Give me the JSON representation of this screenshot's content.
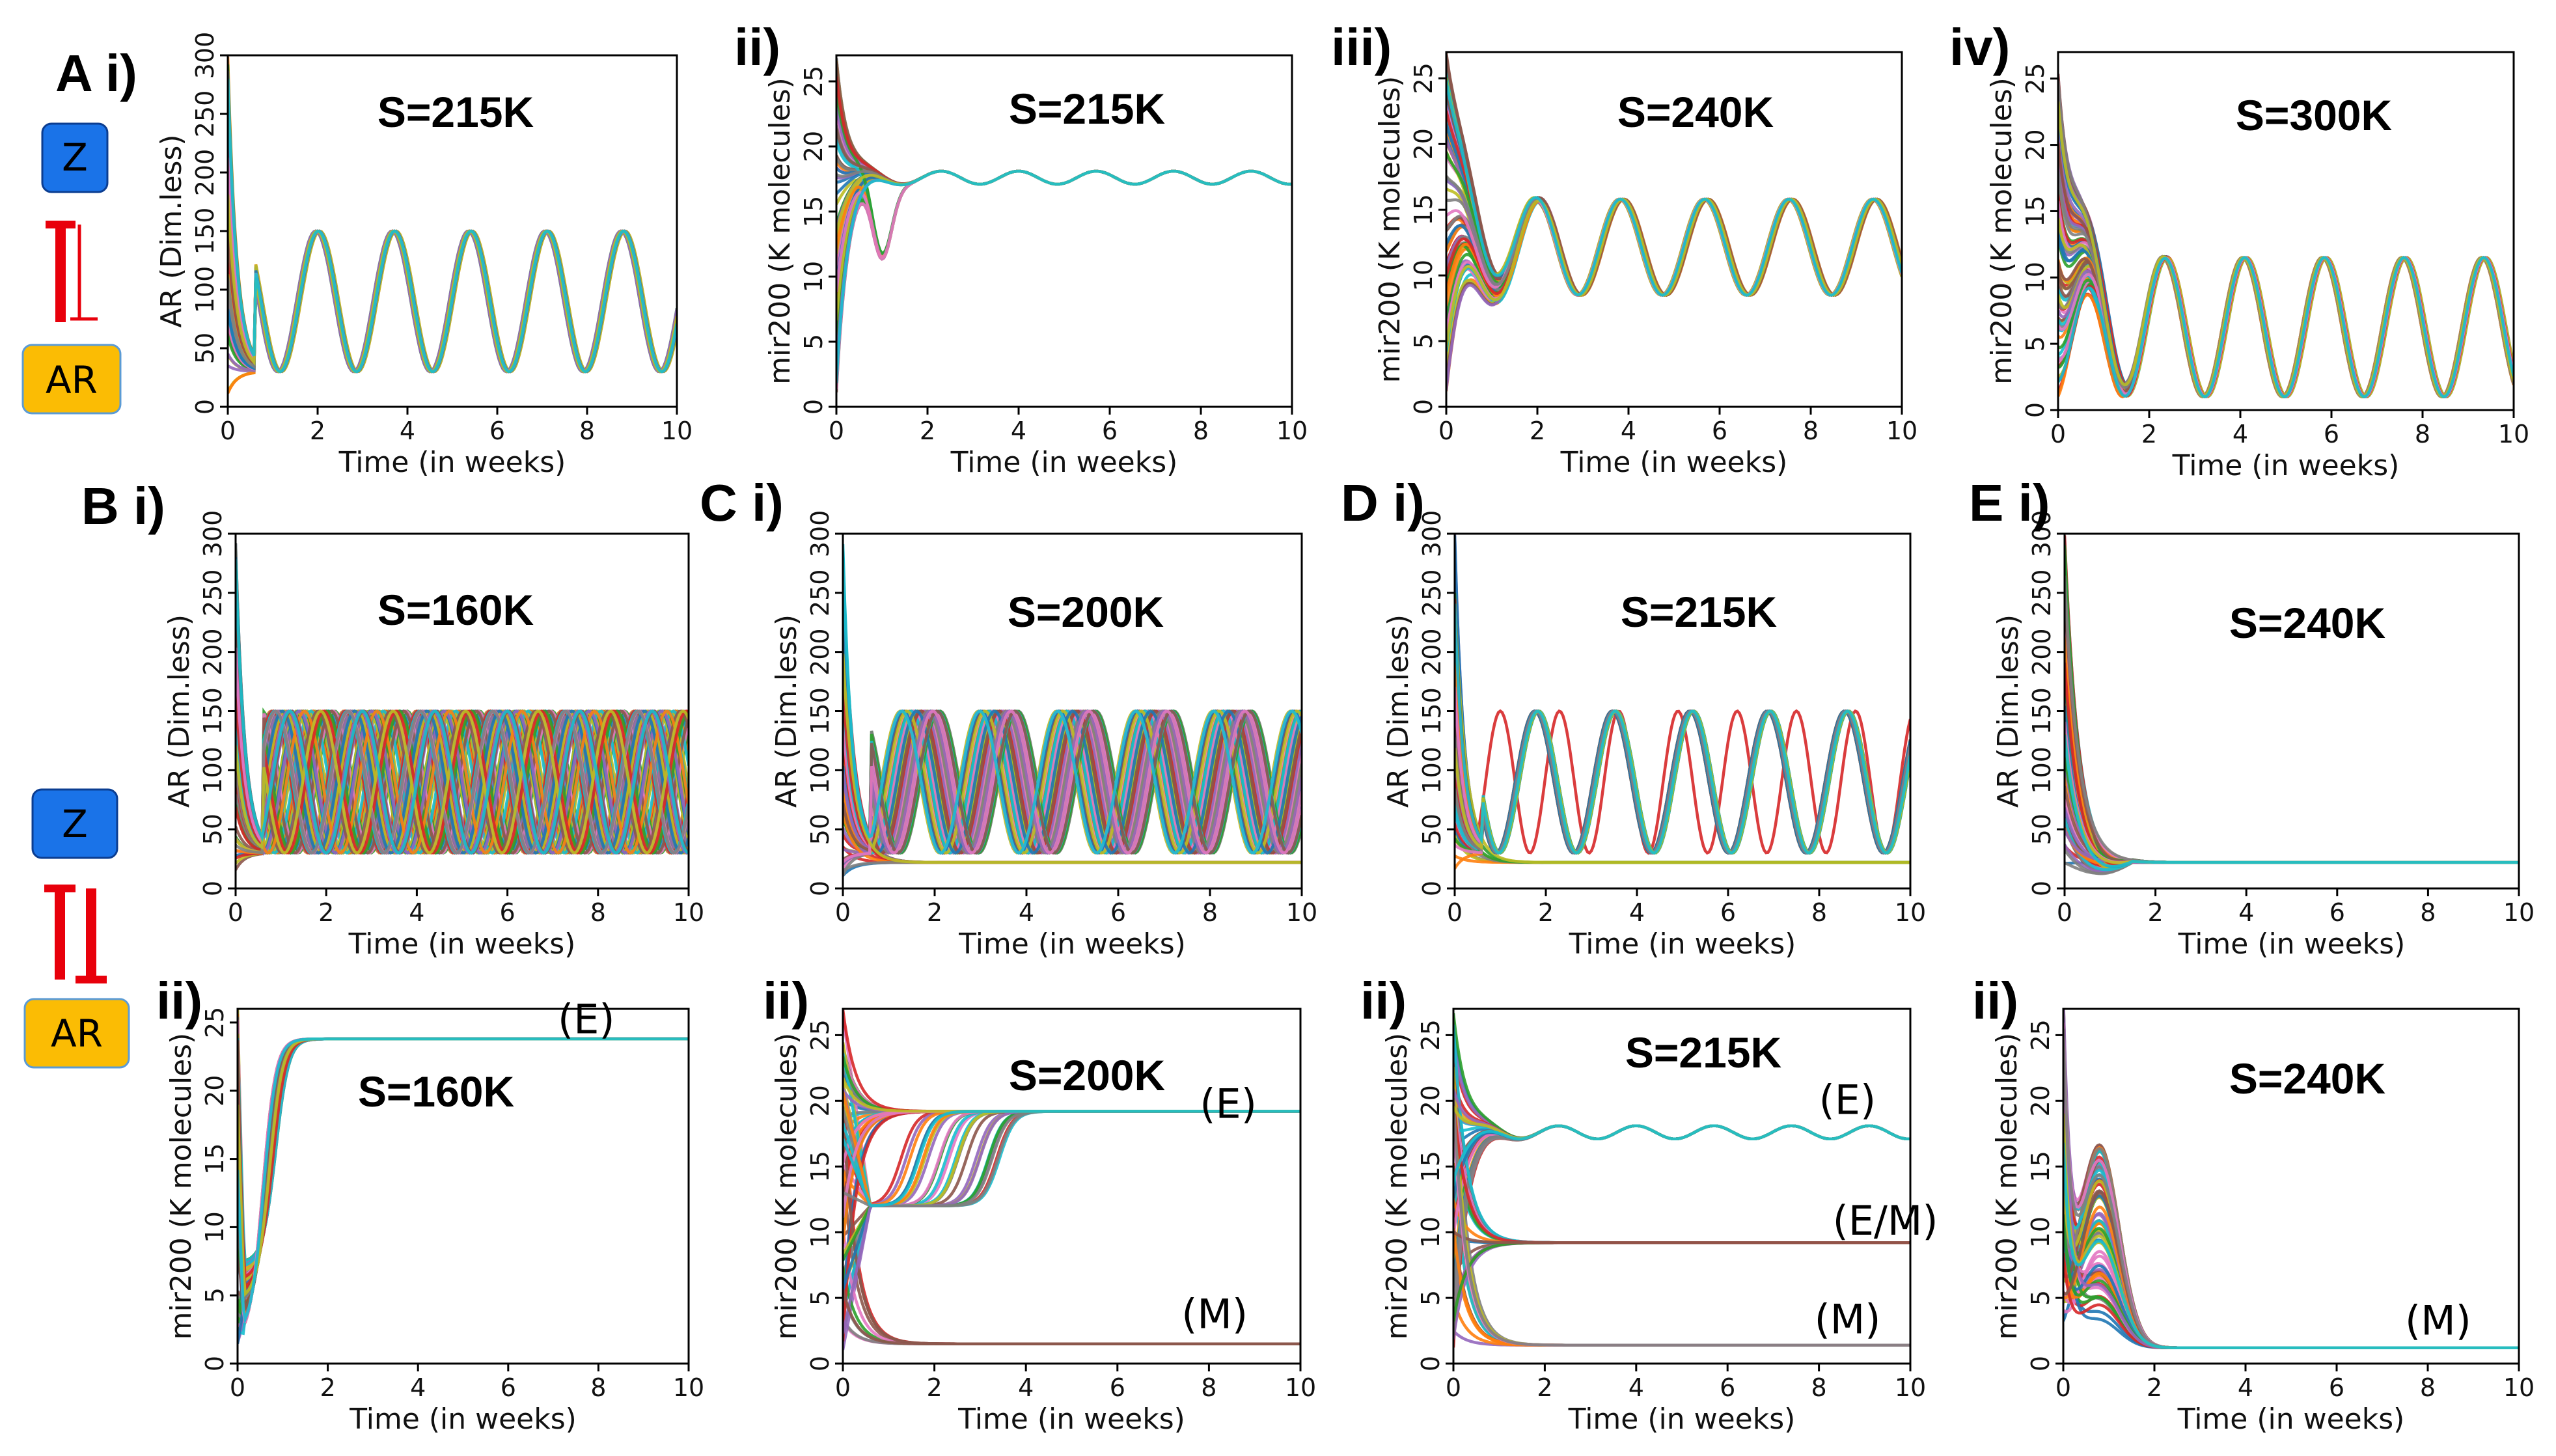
{
  "xlabel": "Time (in weeks)",
  "ylabels": {
    "ar": "AR (Dim.less)",
    "mir": "mir200 (K molecules)"
  },
  "legend_nodes": {
    "z": "Z",
    "ar": "AR"
  },
  "colors": {
    "palette": [
      "#1f77b4",
      "#ff7f0e",
      "#2ca02c",
      "#d62728",
      "#9467bd",
      "#8c564b",
      "#e377c2",
      "#7f7f7f",
      "#bcbd22",
      "#17becf"
    ],
    "z_badge": "#1a73e8",
    "ar_badge": "#fbbc04",
    "inhibit": "#e8000b"
  },
  "chart_data": [
    {
      "panel_label": "A i)",
      "title": "S=215K",
      "type": "line",
      "kind": "ar-osc",
      "xlim": [
        0,
        10
      ],
      "ylim": [
        0,
        300
      ],
      "xticks": [
        0,
        2,
        4,
        6,
        8,
        10
      ],
      "yticks": [
        0,
        50,
        100,
        150,
        200,
        250,
        300
      ],
      "series_summary": {
        "initial_max": 300,
        "osc_min": 30,
        "osc_max": 150,
        "period_weeks": 1.7,
        "first_peak": 2.0,
        "phase_spread": 0.1
      }
    },
    {
      "panel_label": "ii)",
      "title": "S=215K",
      "type": "line",
      "kind": "mir-damped",
      "xlim": [
        0,
        10
      ],
      "ylim": [
        0,
        27
      ],
      "xticks": [
        0,
        2,
        4,
        6,
        8,
        10
      ],
      "yticks": [
        0,
        5,
        10,
        15,
        20,
        25
      ],
      "series_summary": {
        "steady_center": 17.6,
        "amplitude": 0.5,
        "period_weeks": 1.7
      }
    },
    {
      "panel_label": "iii)",
      "title": "S=240K",
      "type": "line",
      "kind": "mir-osc",
      "xlim": [
        0,
        10
      ],
      "ylim": [
        0,
        27
      ],
      "xticks": [
        0,
        2,
        4,
        6,
        8,
        10
      ],
      "yticks": [
        0,
        5,
        10,
        15,
        20,
        25
      ],
      "series_summary": {
        "osc_min": 8.5,
        "osc_max": 15.8,
        "period_weeks": 1.85,
        "first_peak": 2.0
      }
    },
    {
      "panel_label": "iv)",
      "title": "S=300K",
      "type": "line",
      "kind": "mir-osc",
      "xlim": [
        0,
        10
      ],
      "ylim": [
        0,
        27
      ],
      "xticks": [
        0,
        2,
        4,
        6,
        8,
        10
      ],
      "yticks": [
        0,
        5,
        10,
        15,
        20,
        25
      ],
      "series_summary": {
        "osc_min": 1.0,
        "osc_max": 11.5,
        "period_weeks": 1.75,
        "first_peak": 0.6
      }
    },
    {
      "panel_label": "B i)",
      "title": "S=160K",
      "type": "line",
      "kind": "ar-osc",
      "xlim": [
        0,
        10
      ],
      "ylim": [
        0,
        300
      ],
      "xticks": [
        0,
        2,
        4,
        6,
        8,
        10
      ],
      "yticks": [
        0,
        50,
        100,
        150,
        200,
        250,
        300
      ],
      "series_summary": {
        "initial_max": 300,
        "osc_min": 30,
        "osc_max": 150,
        "period_weeks": 1.6,
        "first_peak": 1.3,
        "phase_spread": 1.6
      }
    },
    {
      "panel_label": "C i)",
      "title": "S=200K",
      "type": "line",
      "kind": "ar-osc",
      "xlim": [
        0,
        10
      ],
      "ylim": [
        0,
        300
      ],
      "xticks": [
        0,
        2,
        4,
        6,
        8,
        10
      ],
      "yticks": [
        0,
        50,
        100,
        150,
        200,
        250,
        300
      ],
      "series_summary": {
        "initial_max": 300,
        "osc_min": 30,
        "osc_max": 150,
        "period_weeks": 1.7,
        "first_peak": 1.7,
        "phase_spread": 0.9,
        "flat_level": 22
      }
    },
    {
      "panel_label": "D i)",
      "title": "S=215K",
      "type": "line",
      "kind": "ar-osc",
      "xlim": [
        0,
        10
      ],
      "ylim": [
        0,
        300
      ],
      "xticks": [
        0,
        2,
        4,
        6,
        8,
        10
      ],
      "yticks": [
        0,
        50,
        100,
        150,
        200,
        250,
        300
      ],
      "series_summary": {
        "initial_max": 300,
        "osc_min": 30,
        "osc_max": 150,
        "period_weeks": 1.7,
        "first_peak": 1.8,
        "phase_spread": 0.1,
        "flat_level": 22,
        "outlier_period": 1.3
      }
    },
    {
      "panel_label": "E i)",
      "title": "S=240K",
      "type": "line",
      "kind": "ar-decay",
      "xlim": [
        0,
        10
      ],
      "ylim": [
        0,
        300
      ],
      "xticks": [
        0,
        2,
        4,
        6,
        8,
        10
      ],
      "yticks": [
        0,
        50,
        100,
        150,
        200,
        250,
        300
      ],
      "series_summary": {
        "initial_max": 300,
        "steady_level": 22
      }
    },
    {
      "panel_label": "ii)",
      "title": "S=160K",
      "type": "line",
      "kind": "mir-steady",
      "xlim": [
        0,
        10
      ],
      "ylim": [
        0,
        26
      ],
      "xticks": [
        0,
        2,
        4,
        6,
        8,
        10
      ],
      "yticks": [
        0,
        5,
        10,
        15,
        20,
        25
      ],
      "states": [
        {
          "label": "(E)",
          "level": 23.8
        }
      ],
      "series_summary": {
        "dip_min": 1.5
      }
    },
    {
      "panel_label": "ii)",
      "title": "S=200K",
      "type": "line",
      "kind": "mir-steady",
      "xlim": [
        0,
        10
      ],
      "ylim": [
        0,
        27
      ],
      "xticks": [
        0,
        2,
        4,
        6,
        8,
        10
      ],
      "yticks": [
        0,
        5,
        10,
        15,
        20,
        25
      ],
      "states": [
        {
          "label": "(E)",
          "level": 19.2
        },
        {
          "label": "(M)",
          "level": 1.5
        }
      ],
      "series_summary": {
        "plateau": 12,
        "jump_times": [
          0.6,
          3.5
        ]
      }
    },
    {
      "panel_label": "ii)",
      "title": "S=215K",
      "type": "line",
      "kind": "mir-steady",
      "xlim": [
        0,
        10
      ],
      "ylim": [
        0,
        27
      ],
      "xticks": [
        0,
        2,
        4,
        6,
        8,
        10
      ],
      "yticks": [
        0,
        5,
        10,
        15,
        20,
        25
      ],
      "states": [
        {
          "label": "(E)",
          "level": 17.6
        },
        {
          "label": "(E/M)",
          "level": 9.2
        },
        {
          "label": "(M)",
          "level": 1.4
        }
      ],
      "series_summary": {
        "e_wiggle": 0.5
      }
    },
    {
      "panel_label": "ii)",
      "title": "S=240K",
      "type": "line",
      "kind": "mir-decay",
      "xlim": [
        0,
        10
      ],
      "ylim": [
        0,
        27
      ],
      "xticks": [
        0,
        2,
        4,
        6,
        8,
        10
      ],
      "yticks": [
        0,
        5,
        10,
        15,
        20,
        25
      ],
      "states": [
        {
          "label": "(M)",
          "level": 1.2
        }
      ],
      "series_summary": {
        "hump_max": 15.5
      }
    }
  ]
}
